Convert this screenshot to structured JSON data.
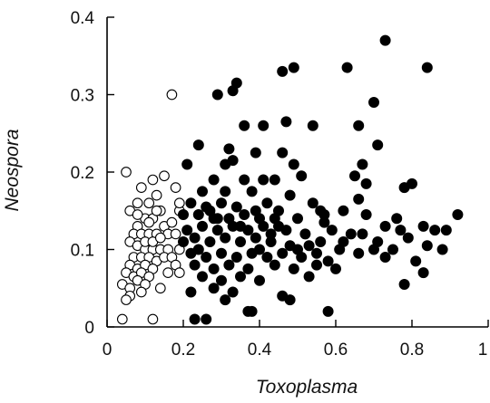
{
  "chart_data": {
    "type": "scatter",
    "title": "",
    "xlabel": "Toxoplasma",
    "ylabel": "Neospora",
    "xlim": [
      0,
      1
    ],
    "ylim": [
      0,
      0.4
    ],
    "x_ticks": [
      "0",
      "0.2",
      "0.4",
      "0.6",
      "0.8",
      "1"
    ],
    "y_ticks": [
      "0",
      "0.1",
      "0.2",
      "0.3",
      "0.4"
    ],
    "grid": false,
    "legend": "none",
    "series": [
      {
        "marker": "open-circle",
        "color": "#000000",
        "points": [
          [
            0.17,
            0.3
          ],
          [
            0.05,
            0.2
          ],
          [
            0.09,
            0.18
          ],
          [
            0.12,
            0.19
          ],
          [
            0.13,
            0.17
          ],
          [
            0.15,
            0.195
          ],
          [
            0.08,
            0.16
          ],
          [
            0.11,
            0.16
          ],
          [
            0.14,
            0.15
          ],
          [
            0.06,
            0.15
          ],
          [
            0.1,
            0.14
          ],
          [
            0.12,
            0.14
          ],
          [
            0.08,
            0.13
          ],
          [
            0.15,
            0.13
          ],
          [
            0.17,
            0.135
          ],
          [
            0.19,
            0.15
          ],
          [
            0.18,
            0.18
          ],
          [
            0.19,
            0.16
          ],
          [
            0.07,
            0.12
          ],
          [
            0.09,
            0.12
          ],
          [
            0.11,
            0.12
          ],
          [
            0.13,
            0.12
          ],
          [
            0.16,
            0.12
          ],
          [
            0.18,
            0.12
          ],
          [
            0.06,
            0.11
          ],
          [
            0.08,
            0.105
          ],
          [
            0.1,
            0.1
          ],
          [
            0.12,
            0.1
          ],
          [
            0.14,
            0.1
          ],
          [
            0.16,
            0.1
          ],
          [
            0.07,
            0.09
          ],
          [
            0.09,
            0.09
          ],
          [
            0.11,
            0.09
          ],
          [
            0.13,
            0.085
          ],
          [
            0.15,
            0.09
          ],
          [
            0.17,
            0.09
          ],
          [
            0.19,
            0.1
          ],
          [
            0.06,
            0.08
          ],
          [
            0.08,
            0.075
          ],
          [
            0.1,
            0.08
          ],
          [
            0.12,
            0.075
          ],
          [
            0.18,
            0.08
          ],
          [
            0.05,
            0.07
          ],
          [
            0.07,
            0.065
          ],
          [
            0.09,
            0.07
          ],
          [
            0.11,
            0.065
          ],
          [
            0.16,
            0.07
          ],
          [
            0.19,
            0.07
          ],
          [
            0.04,
            0.055
          ],
          [
            0.06,
            0.05
          ],
          [
            0.08,
            0.06
          ],
          [
            0.1,
            0.055
          ],
          [
            0.14,
            0.05
          ],
          [
            0.06,
            0.04
          ],
          [
            0.09,
            0.045
          ],
          [
            0.05,
            0.035
          ],
          [
            0.04,
            0.01
          ],
          [
            0.12,
            0.01
          ],
          [
            0.1,
            0.11
          ],
          [
            0.12,
            0.11
          ],
          [
            0.14,
            0.115
          ],
          [
            0.08,
            0.145
          ],
          [
            0.11,
            0.135
          ],
          [
            0.13,
            0.15
          ]
        ]
      },
      {
        "marker": "filled-circle",
        "color": "#000000",
        "points": [
          [
            0.73,
            0.37
          ],
          [
            0.84,
            0.335
          ],
          [
            0.49,
            0.335
          ],
          [
            0.46,
            0.33
          ],
          [
            0.63,
            0.335
          ],
          [
            0.34,
            0.315
          ],
          [
            0.33,
            0.305
          ],
          [
            0.29,
            0.3
          ],
          [
            0.7,
            0.29
          ],
          [
            0.36,
            0.26
          ],
          [
            0.41,
            0.26
          ],
          [
            0.47,
            0.265
          ],
          [
            0.54,
            0.26
          ],
          [
            0.66,
            0.26
          ],
          [
            0.24,
            0.235
          ],
          [
            0.32,
            0.23
          ],
          [
            0.39,
            0.225
          ],
          [
            0.46,
            0.225
          ],
          [
            0.71,
            0.235
          ],
          [
            0.31,
            0.21
          ],
          [
            0.33,
            0.215
          ],
          [
            0.49,
            0.21
          ],
          [
            0.67,
            0.21
          ],
          [
            0.21,
            0.21
          ],
          [
            0.28,
            0.19
          ],
          [
            0.36,
            0.19
          ],
          [
            0.41,
            0.19
          ],
          [
            0.44,
            0.19
          ],
          [
            0.51,
            0.195
          ],
          [
            0.65,
            0.195
          ],
          [
            0.68,
            0.185
          ],
          [
            0.8,
            0.185
          ],
          [
            0.78,
            0.18
          ],
          [
            0.25,
            0.175
          ],
          [
            0.31,
            0.175
          ],
          [
            0.38,
            0.175
          ],
          [
            0.48,
            0.17
          ],
          [
            0.3,
            0.16
          ],
          [
            0.42,
            0.16
          ],
          [
            0.54,
            0.16
          ],
          [
            0.66,
            0.165
          ],
          [
            0.22,
            0.16
          ],
          [
            0.26,
            0.155
          ],
          [
            0.34,
            0.155
          ],
          [
            0.45,
            0.15
          ],
          [
            0.56,
            0.15
          ],
          [
            0.68,
            0.145
          ],
          [
            0.86,
            0.125
          ],
          [
            0.92,
            0.145
          ],
          [
            0.62,
            0.15
          ],
          [
            0.2,
            0.145
          ],
          [
            0.24,
            0.145
          ],
          [
            0.28,
            0.14
          ],
          [
            0.32,
            0.14
          ],
          [
            0.36,
            0.145
          ],
          [
            0.4,
            0.14
          ],
          [
            0.44,
            0.14
          ],
          [
            0.5,
            0.14
          ],
          [
            0.57,
            0.135
          ],
          [
            0.73,
            0.13
          ],
          [
            0.77,
            0.125
          ],
          [
            0.83,
            0.13
          ],
          [
            0.89,
            0.125
          ],
          [
            0.21,
            0.125
          ],
          [
            0.25,
            0.13
          ],
          [
            0.29,
            0.125
          ],
          [
            0.33,
            0.13
          ],
          [
            0.37,
            0.125
          ],
          [
            0.41,
            0.13
          ],
          [
            0.47,
            0.125
          ],
          [
            0.52,
            0.12
          ],
          [
            0.59,
            0.125
          ],
          [
            0.64,
            0.12
          ],
          [
            0.71,
            0.11
          ],
          [
            0.79,
            0.115
          ],
          [
            0.84,
            0.105
          ],
          [
            0.2,
            0.11
          ],
          [
            0.23,
            0.115
          ],
          [
            0.27,
            0.11
          ],
          [
            0.31,
            0.115
          ],
          [
            0.35,
            0.11
          ],
          [
            0.39,
            0.115
          ],
          [
            0.43,
            0.11
          ],
          [
            0.48,
            0.105
          ],
          [
            0.53,
            0.105
          ],
          [
            0.56,
            0.11
          ],
          [
            0.62,
            0.11
          ],
          [
            0.7,
            0.1
          ],
          [
            0.75,
            0.1
          ],
          [
            0.88,
            0.1
          ],
          [
            0.22,
            0.095
          ],
          [
            0.26,
            0.09
          ],
          [
            0.3,
            0.095
          ],
          [
            0.34,
            0.09
          ],
          [
            0.38,
            0.095
          ],
          [
            0.42,
            0.09
          ],
          [
            0.46,
            0.095
          ],
          [
            0.51,
            0.09
          ],
          [
            0.55,
            0.095
          ],
          [
            0.58,
            0.085
          ],
          [
            0.66,
            0.095
          ],
          [
            0.73,
            0.09
          ],
          [
            0.81,
            0.085
          ],
          [
            0.23,
            0.08
          ],
          [
            0.28,
            0.075
          ],
          [
            0.32,
            0.08
          ],
          [
            0.37,
            0.075
          ],
          [
            0.44,
            0.08
          ],
          [
            0.49,
            0.075
          ],
          [
            0.55,
            0.08
          ],
          [
            0.6,
            0.075
          ],
          [
            0.83,
            0.07
          ],
          [
            0.25,
            0.065
          ],
          [
            0.3,
            0.06
          ],
          [
            0.35,
            0.065
          ],
          [
            0.4,
            0.06
          ],
          [
            0.53,
            0.065
          ],
          [
            0.78,
            0.055
          ],
          [
            0.28,
            0.05
          ],
          [
            0.33,
            0.045
          ],
          [
            0.22,
            0.045
          ],
          [
            0.46,
            0.04
          ],
          [
            0.48,
            0.035
          ],
          [
            0.31,
            0.035
          ],
          [
            0.37,
            0.02
          ],
          [
            0.38,
            0.02
          ],
          [
            0.58,
            0.02
          ],
          [
            0.23,
            0.01
          ],
          [
            0.26,
            0.01
          ],
          [
            0.43,
            0.12
          ],
          [
            0.45,
            0.13
          ],
          [
            0.39,
            0.15
          ],
          [
            0.35,
            0.13
          ],
          [
            0.29,
            0.14
          ],
          [
            0.27,
            0.15
          ],
          [
            0.57,
            0.145
          ],
          [
            0.61,
            0.1
          ],
          [
            0.5,
            0.1
          ],
          [
            0.4,
            0.1
          ],
          [
            0.24,
            0.1
          ],
          [
            0.67,
            0.12
          ],
          [
            0.76,
            0.14
          ]
        ]
      }
    ]
  }
}
